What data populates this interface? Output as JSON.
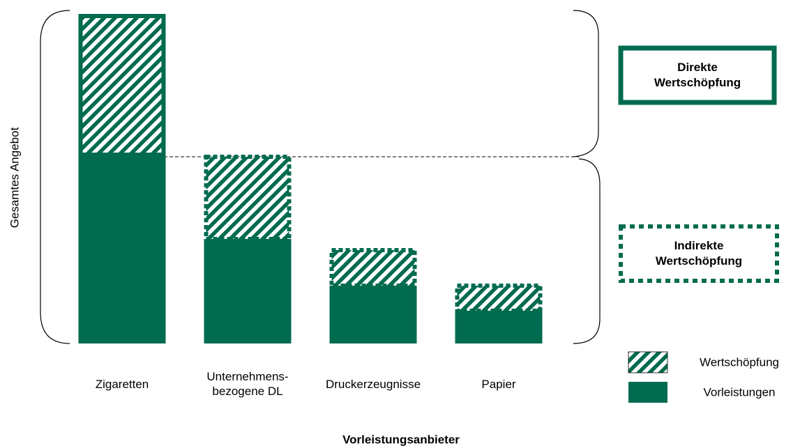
{
  "chart_data": {
    "type": "bar",
    "stacked": true,
    "categories": [
      "Zigaretten",
      "Unternehmens-\nbezogene DL",
      "Druckerzeugnisse",
      "Papier"
    ],
    "series": [
      {
        "name": "Vorleistungen",
        "color": "#006b4f",
        "fill": "solid",
        "values": [
          271,
          150,
          83,
          47
        ]
      },
      {
        "name": "Wertschöpfung",
        "color": "#006b4f",
        "fill": "hatched",
        "values": [
          202,
          121,
          54,
          39
        ]
      }
    ],
    "bar_border_styles": [
      "solid",
      "dotted",
      "dotted",
      "dotted"
    ],
    "ylim": [
      0,
      480
    ],
    "y_label": "Gesamtes Angebot",
    "x_label": "Vorleistungsanbieter",
    "annotations": [
      {
        "text": "Direkte\nWertschöpfung",
        "style": "solid"
      },
      {
        "text": "Indirekte\nWertschöpfung",
        "style": "dotted"
      }
    ]
  }
}
